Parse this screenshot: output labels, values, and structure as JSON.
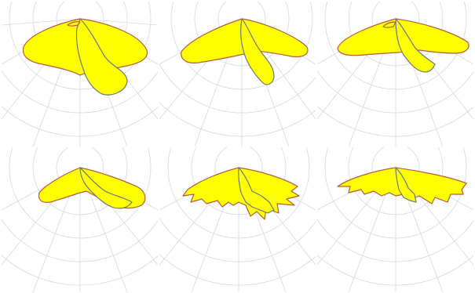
{
  "colors": {
    "fill": "#ffff00",
    "outline_c0": "#b85a40",
    "outline_c90": "#6a7a78",
    "grid": "#d8d8d8",
    "background": "#ffffff"
  },
  "panels": [
    {
      "id": "panel-1"
    },
    {
      "id": "panel-2"
    },
    {
      "id": "panel-3"
    },
    {
      "id": "panel-4"
    },
    {
      "id": "panel-5"
    },
    {
      "id": "panel-6"
    }
  ]
}
